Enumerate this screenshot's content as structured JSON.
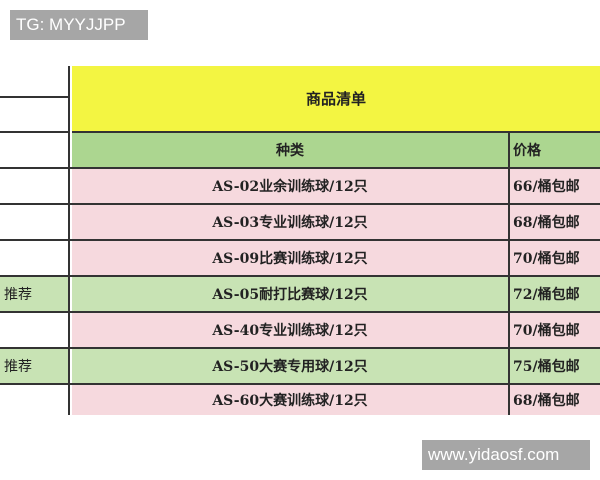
{
  "watermarks": {
    "top": "TG: MYYJJPP",
    "bottom": "www.yidaosf.com"
  },
  "table": {
    "title": "商品清单",
    "headers": {
      "name": "种类",
      "price": "价格"
    },
    "rows": [
      {
        "tag": "",
        "name": "AS-02业余训练球/12只",
        "price": "66/桶包邮",
        "color": "#f6d9de"
      },
      {
        "tag": "",
        "name": "AS-03专业训练球/12只",
        "price": "68/桶包邮",
        "color": "#f6d9de"
      },
      {
        "tag": "",
        "name": "AS-09比赛训练球/12只",
        "price": "70/桶包邮",
        "color": "#f6d9de"
      },
      {
        "tag": "推荐",
        "name": "AS-05耐打比赛球/12只",
        "price": "72/桶包邮",
        "color": "#c8e3b4"
      },
      {
        "tag": "",
        "name": "AS-40专业训练球/12只",
        "price": "70/桶包邮",
        "color": "#f6d9de"
      },
      {
        "tag": "推荐",
        "name": "AS-50大赛专用球/12只",
        "price": "75/桶包邮",
        "color": "#c8e3b4"
      },
      {
        "tag": "",
        "name": "AS-60大赛训练球/12只",
        "price": "68/桶包邮",
        "color": "#f6d9de"
      }
    ]
  }
}
